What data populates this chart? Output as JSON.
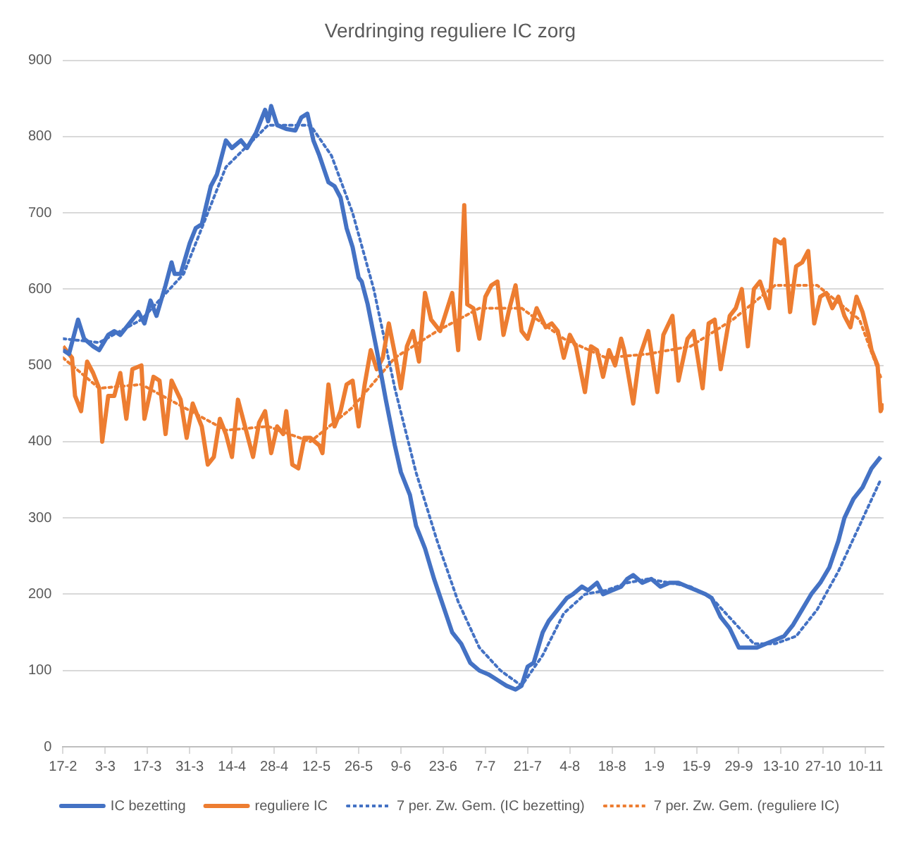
{
  "chart_data": {
    "type": "line",
    "title": "Verdringing reguliere IC zorg",
    "xlim": [
      "--02-17",
      "--11-16"
    ],
    "xticks": [
      {
        "value": "--02-17",
        "label": "17-2"
      },
      {
        "value": "--03-03",
        "label": "3-3"
      },
      {
        "value": "--03-17",
        "label": "17-3"
      },
      {
        "value": "--03-31",
        "label": "31-3"
      },
      {
        "value": "--04-14",
        "label": "14-4"
      },
      {
        "value": "--04-28",
        "label": "28-4"
      },
      {
        "value": "--05-12",
        "label": "12-5"
      },
      {
        "value": "--05-26",
        "label": "26-5"
      },
      {
        "value": "--06-09",
        "label": "9-6"
      },
      {
        "value": "--06-23",
        "label": "23-6"
      },
      {
        "value": "--07-07",
        "label": "7-7"
      },
      {
        "value": "--07-21",
        "label": "21-7"
      },
      {
        "value": "--08-04",
        "label": "4-8"
      },
      {
        "value": "--08-18",
        "label": "18-8"
      },
      {
        "value": "--09-01",
        "label": "1-9"
      },
      {
        "value": "--09-15",
        "label": "15-9"
      },
      {
        "value": "--09-29",
        "label": "29-9"
      },
      {
        "value": "--10-13",
        "label": "13-10"
      },
      {
        "value": "--10-27",
        "label": "27-10"
      },
      {
        "value": "--11-10",
        "label": "10-11"
      }
    ],
    "ylim": [
      0,
      900
    ],
    "yticks": [
      0,
      100,
      200,
      300,
      400,
      500,
      600,
      700,
      800,
      900
    ],
    "grid": "y",
    "legend": "bottom",
    "marker": "none",
    "series": [
      {
        "name": "IC bezetting",
        "color": "#4472c4",
        "line_style": "solid",
        "x": [
          "--02-17",
          "--02-19",
          "--02-22",
          "--02-24",
          "--02-27",
          "--03-01",
          "--03-04",
          "--03-06",
          "--03-08",
          "--03-11",
          "--03-14",
          "--03-16",
          "--03-18",
          "--03-20",
          "--03-23",
          "--03-25",
          "--03-26",
          "--03-28",
          "--03-31",
          "--04-02",
          "--04-04",
          "--04-07",
          "--04-09",
          "--04-12",
          "--04-14",
          "--04-17",
          "--04-19",
          "--04-22",
          "--04-25",
          "--04-26",
          "--04-27",
          "--04-29",
          "--05-02",
          "--05-05",
          "--05-07",
          "--05-09",
          "--05-11",
          "--05-13",
          "--05-16",
          "--05-18",
          "--05-20",
          "--05-22",
          "--05-24",
          "--05-26",
          "--05-27",
          "--05-29",
          "--06-01",
          "--06-04",
          "--06-07",
          "--06-09",
          "--06-12",
          "--06-14",
          "--06-17",
          "--06-20",
          "--06-23",
          "--06-26",
          "--06-29",
          "--07-02",
          "--07-05",
          "--07-08",
          "--07-10",
          "--07-12",
          "--07-14",
          "--07-17",
          "--07-19",
          "--07-21",
          "--07-23",
          "--07-26",
          "--07-28",
          "--07-31",
          "--08-03",
          "--08-05",
          "--08-08",
          "--08-10",
          "--08-13",
          "--08-15",
          "--08-18",
          "--08-21",
          "--08-23",
          "--08-25",
          "--08-28",
          "--08-31",
          "--09-03",
          "--09-06",
          "--09-09",
          "--09-12",
          "--09-15",
          "--09-18",
          "--09-20",
          "--09-23",
          "--09-26",
          "--09-29",
          "--10-02",
          "--10-05",
          "--10-08",
          "--10-11",
          "--10-14",
          "--10-17",
          "--10-20",
          "--10-23",
          "--10-26",
          "--10-29",
          "--11-01",
          "--11-03",
          "--11-06",
          "--11-09",
          "--11-12",
          "--11-15"
        ],
        "values": [
          520,
          515,
          560,
          535,
          525,
          520,
          540,
          545,
          540,
          555,
          570,
          555,
          585,
          565,
          605,
          635,
          620,
          620,
          660,
          680,
          685,
          735,
          750,
          795,
          785,
          795,
          785,
          805,
          835,
          820,
          840,
          815,
          810,
          808,
          825,
          830,
          795,
          775,
          740,
          735,
          720,
          680,
          655,
          615,
          610,
          580,
          520,
          455,
          395,
          360,
          330,
          290,
          260,
          220,
          185,
          150,
          135,
          110,
          100,
          95,
          90,
          85,
          80,
          75,
          80,
          105,
          110,
          150,
          165,
          180,
          195,
          200,
          210,
          205,
          215,
          200,
          205,
          210,
          220,
          225,
          215,
          220,
          210,
          215,
          215,
          210,
          205,
          200,
          195,
          170,
          155,
          130,
          130,
          130,
          135,
          140,
          145,
          160,
          180,
          200,
          215,
          235,
          270,
          300,
          325,
          340,
          365,
          380
        ]
      },
      {
        "name": "reguliere IC",
        "color": "#ed7d31",
        "line_style": "solid",
        "x": [
          "--02-17",
          "--02-19",
          "--02-20",
          "--02-21",
          "--02-23",
          "--02-25",
          "--02-27",
          "--03-01",
          "--03-02",
          "--03-04",
          "--03-06",
          "--03-08",
          "--03-10",
          "--03-12",
          "--03-15",
          "--03-16",
          "--03-19",
          "--03-21",
          "--03-23",
          "--03-25",
          "--03-28",
          "--03-30",
          "--04-01",
          "--04-04",
          "--04-06",
          "--04-08",
          "--04-10",
          "--04-12",
          "--04-14",
          "--04-16",
          "--04-18",
          "--04-21",
          "--04-23",
          "--04-25",
          "--04-27",
          "--04-29",
          "--05-01",
          "--05-02",
          "--05-04",
          "--05-06",
          "--05-08",
          "--05-10",
          "--05-13",
          "--05-14",
          "--05-16",
          "--05-18",
          "--05-20",
          "--05-22",
          "--05-24",
          "--05-26",
          "--05-28",
          "--05-30",
          "--06-01",
          "--06-03",
          "--06-05",
          "--06-07",
          "--06-09",
          "--06-11",
          "--06-13",
          "--06-15",
          "--06-17",
          "--06-19",
          "--06-22",
          "--06-24",
          "--06-26",
          "--06-28",
          "--06-30",
          "--07-01",
          "--07-03",
          "--07-05",
          "--07-07",
          "--07-09",
          "--07-11",
          "--07-13",
          "--07-15",
          "--07-17",
          "--07-19",
          "--07-21",
          "--07-24",
          "--07-27",
          "--07-29",
          "--07-31",
          "--08-02",
          "--08-04",
          "--08-06",
          "--08-09",
          "--08-11",
          "--08-13",
          "--08-15",
          "--08-17",
          "--08-19",
          "--08-21",
          "--08-22",
          "--08-25",
          "--08-27",
          "--08-30",
          "--09-02",
          "--09-04",
          "--09-07",
          "--09-09",
          "--09-12",
          "--09-14",
          "--09-17",
          "--09-19",
          "--09-21",
          "--09-23",
          "--09-26",
          "--09-28",
          "--09-30",
          "--10-02",
          "--10-04",
          "--10-06",
          "--10-09",
          "--10-11",
          "--10-13",
          "--10-14",
          "--10-16",
          "--10-18",
          "--10-20",
          "--10-22",
          "--10-24",
          "--10-26",
          "--10-28",
          "--10-30",
          "--11-01",
          "--11-03",
          "--11-05",
          "--11-07",
          "--11-09",
          "--11-11",
          "--11-12",
          "--11-14",
          "--11-15",
          "--11-16"
        ],
        "values": [
          525,
          515,
          510,
          460,
          440,
          505,
          490,
          470,
          400,
          460,
          460,
          490,
          430,
          495,
          500,
          430,
          485,
          480,
          410,
          480,
          455,
          405,
          450,
          420,
          370,
          380,
          430,
          410,
          380,
          455,
          425,
          380,
          425,
          440,
          385,
          420,
          410,
          440,
          370,
          365,
          405,
          405,
          395,
          385,
          475,
          420,
          440,
          475,
          480,
          420,
          475,
          520,
          495,
          510,
          555,
          515,
          470,
          525,
          545,
          505,
          595,
          560,
          545,
          570,
          595,
          520,
          710,
          580,
          575,
          535,
          590,
          605,
          610,
          540,
          575,
          605,
          545,
          535,
          575,
          550,
          555,
          545,
          510,
          540,
          525,
          465,
          525,
          520,
          485,
          520,
          500,
          535,
          520,
          450,
          510,
          545,
          465,
          540,
          565,
          480,
          535,
          545,
          470,
          555,
          560,
          495,
          565,
          575,
          600,
          525,
          600,
          610,
          575,
          665,
          660,
          665,
          570,
          630,
          635,
          650,
          555,
          590,
          595,
          575,
          590,
          565,
          550,
          590,
          570,
          540,
          520,
          500,
          440,
          450
        ]
      },
      {
        "name": "7 per. Zw. Gem. (IC bezetting)",
        "color": "#4472c4",
        "line_style": "dotted",
        "x": [
          "--02-17",
          "--03-01",
          "--03-15",
          "--03-29",
          "--04-12",
          "--04-26",
          "--05-10",
          "--05-17",
          "--05-24",
          "--05-31",
          "--06-07",
          "--06-14",
          "--06-21",
          "--06-28",
          "--07-05",
          "--07-12",
          "--07-19",
          "--07-26",
          "--08-02",
          "--08-09",
          "--08-16",
          "--08-23",
          "--08-30",
          "--09-06",
          "--09-13",
          "--09-20",
          "--09-27",
          "--10-04",
          "--10-11",
          "--10-18",
          "--10-25",
          "--11-01",
          "--11-08",
          "--11-15"
        ],
        "values": [
          535,
          530,
          560,
          620,
          760,
          815,
          815,
          775,
          700,
          600,
          470,
          360,
          270,
          190,
          130,
          100,
          80,
          120,
          175,
          200,
          205,
          215,
          220,
          215,
          210,
          195,
          165,
          135,
          135,
          145,
          180,
          230,
          290,
          350
        ]
      },
      {
        "name": "7 per. Zw. Gem. (reguliere IC)",
        "color": "#ed7d31",
        "line_style": "dotted",
        "x": [
          "--02-17",
          "--03-01",
          "--03-15",
          "--03-29",
          "--04-12",
          "--04-26",
          "--05-10",
          "--05-24",
          "--06-07",
          "--06-21",
          "--07-05",
          "--07-19",
          "--08-02",
          "--08-16",
          "--08-30",
          "--09-13",
          "--09-27",
          "--10-11",
          "--10-25",
          "--11-08",
          "--11-15"
        ],
        "values": [
          510,
          470,
          475,
          445,
          415,
          420,
          400,
          445,
          510,
          545,
          575,
          575,
          535,
          510,
          515,
          525,
          560,
          605,
          605,
          560,
          485
        ]
      }
    ]
  }
}
